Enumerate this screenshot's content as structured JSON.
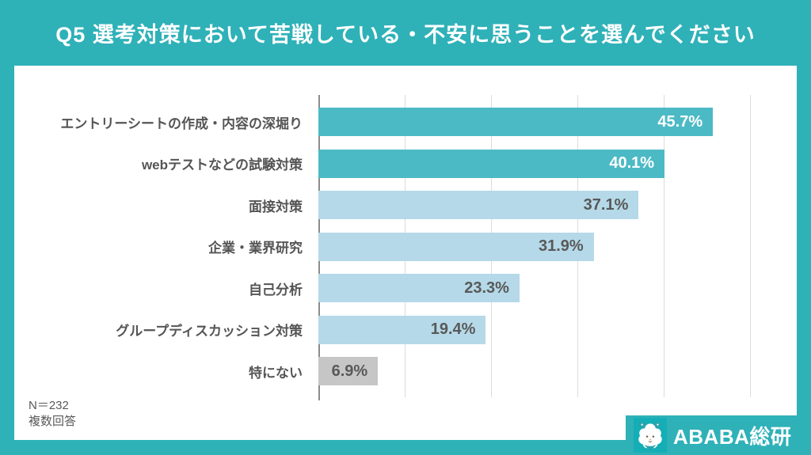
{
  "header": {
    "title": "Q5  選考対策において苦戦している・不安に思うことを選んでください"
  },
  "chart_data": {
    "type": "bar",
    "orientation": "horizontal",
    "title": "Q5  選考対策において苦戦している・不安に思うことを選んでください",
    "categories": [
      "エントリーシートの作成・内容の深堀り",
      "webテストなどの試験対策",
      "面接対策",
      "企業・業界研究",
      "自己分析",
      "グループディスカッション対策",
      "特にない"
    ],
    "values": [
      45.7,
      40.1,
      37.1,
      31.9,
      23.3,
      19.4,
      6.9
    ],
    "value_labels": [
      "45.7%",
      "40.1%",
      "37.1%",
      "31.9%",
      "23.3%",
      "19.4%",
      "6.9%"
    ],
    "xlabel": "",
    "ylabel": "",
    "xlim": [
      0,
      50
    ],
    "gridline_interval": 10,
    "grid": true,
    "legend": false,
    "bar_styles": [
      {
        "fill": "#4cbac5",
        "value_color": "#ffffff"
      },
      {
        "fill": "#4cbac5",
        "value_color": "#ffffff"
      },
      {
        "fill": "#b5d9e8",
        "value_color": "#595959"
      },
      {
        "fill": "#b5d9e8",
        "value_color": "#595959"
      },
      {
        "fill": "#b5d9e8",
        "value_color": "#595959"
      },
      {
        "fill": "#b5d9e8",
        "value_color": "#595959"
      },
      {
        "fill": "#c6c6c6",
        "value_color": "#595959"
      }
    ]
  },
  "footnote": {
    "n_label": "N＝232",
    "note": "複数回答"
  },
  "logo": {
    "icon": "alpaca-icon",
    "text": "ABABA総研"
  },
  "colors": {
    "page_background": "#2fb1b8",
    "card_background": "#ffffff",
    "bar_teal": "#4cbac5",
    "bar_light_blue": "#b5d9e8",
    "bar_gray": "#c6c6c6",
    "label_text": "#555555",
    "gridline": "#dcdcdc",
    "axis_line": "#8c8c8c",
    "logo_tile": "#14aeb6",
    "title_text": "#ffffff"
  }
}
